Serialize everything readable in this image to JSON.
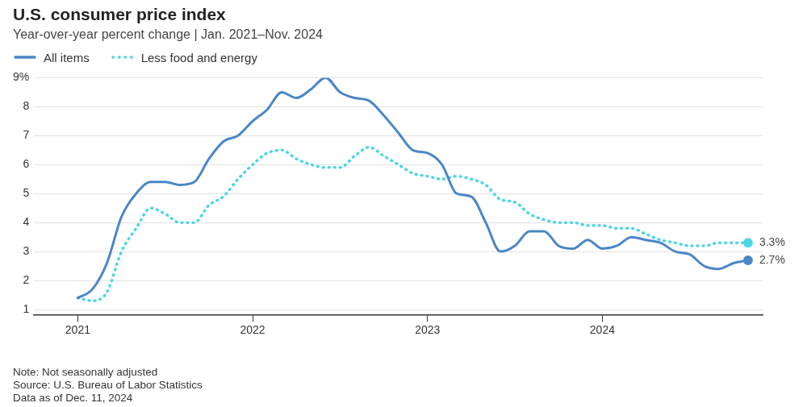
{
  "chart_data": {
    "type": "line",
    "title": "U.S. consumer price index",
    "subtitle": "Year-over-year percent change | Jan. 2021–Nov. 2024",
    "x": [
      "2021-01",
      "2021-02",
      "2021-03",
      "2021-04",
      "2021-05",
      "2021-06",
      "2021-07",
      "2021-08",
      "2021-09",
      "2021-10",
      "2021-11",
      "2021-12",
      "2022-01",
      "2022-02",
      "2022-03",
      "2022-04",
      "2022-05",
      "2022-06",
      "2022-07",
      "2022-08",
      "2022-09",
      "2022-10",
      "2022-11",
      "2022-12",
      "2023-01",
      "2023-02",
      "2023-03",
      "2023-04",
      "2023-05",
      "2023-06",
      "2023-07",
      "2023-08",
      "2023-09",
      "2023-10",
      "2023-11",
      "2023-12",
      "2024-01",
      "2024-02",
      "2024-03",
      "2024-04",
      "2024-05",
      "2024-06",
      "2024-07",
      "2024-08",
      "2024-09",
      "2024-10",
      "2024-11"
    ],
    "series": [
      {
        "name": "All items",
        "color": "#4a86c8",
        "line_style": "solid",
        "values": [
          1.4,
          1.7,
          2.6,
          4.2,
          5.0,
          5.4,
          5.4,
          5.3,
          5.4,
          6.2,
          6.8,
          7.0,
          7.5,
          7.9,
          8.5,
          8.3,
          8.6,
          9.0,
          8.5,
          8.3,
          8.2,
          7.7,
          7.1,
          6.5,
          6.4,
          6.0,
          5.0,
          4.9,
          4.0,
          3.0,
          3.2,
          3.7,
          3.7,
          3.2,
          3.1,
          3.4,
          3.1,
          3.2,
          3.5,
          3.4,
          3.3,
          3.0,
          2.9,
          2.5,
          2.4,
          2.6,
          2.7
        ]
      },
      {
        "name": "Less food and energy",
        "color": "#4fd6e3",
        "line_style": "dotted",
        "values": [
          1.4,
          1.3,
          1.6,
          3.0,
          3.8,
          4.5,
          4.3,
          4.0,
          4.0,
          4.6,
          4.9,
          5.5,
          6.0,
          6.4,
          6.5,
          6.2,
          6.0,
          5.9,
          5.9,
          6.3,
          6.6,
          6.3,
          6.0,
          5.7,
          5.6,
          5.5,
          5.6,
          5.5,
          5.3,
          4.8,
          4.7,
          4.3,
          4.1,
          4.0,
          4.0,
          3.9,
          3.9,
          3.8,
          3.8,
          3.6,
          3.4,
          3.3,
          3.2,
          3.2,
          3.3,
          3.3,
          3.3
        ]
      }
    ],
    "xlim": [
      "2020-10",
      "2024-12"
    ],
    "xticks": [
      {
        "value": "2021",
        "label": "2021"
      },
      {
        "value": "2022",
        "label": "2022"
      },
      {
        "value": "2023",
        "label": "2023"
      },
      {
        "value": "2024",
        "label": "2024"
      }
    ],
    "ylim": [
      0.8,
      9
    ],
    "yticks": [
      1,
      2,
      3,
      4,
      5,
      6,
      7,
      8,
      {
        "value": 9,
        "label": "9%"
      }
    ],
    "grid": "y",
    "legend": "top left",
    "annotations": [
      {
        "text": "3.3%",
        "x": "2024-11",
        "y": 3.3
      },
      {
        "text": "2.7%",
        "x": "2024-11",
        "y": 2.7
      },
      "Note: Not seasonally adjusted",
      "Source: U.S. Bureau of Labor Statistics",
      "Data as of Dec. 11, 2024"
    ]
  }
}
